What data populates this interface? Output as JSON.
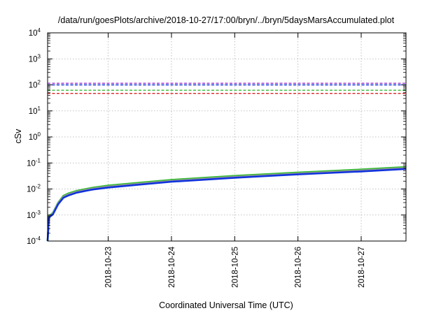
{
  "chart_data": {
    "type": "line",
    "title": "/data/run/goesPlots/archive/2018-10-27/17:00/bryn/../bryn/5daysMarsAccumulated.plot",
    "xlabel": "Coordinated Universal Time (UTC)",
    "ylabel": "cSv",
    "yscale": "log",
    "ylim": [
      0.0001,
      10000
    ],
    "xlim": [
      "2018-10-22T01:00",
      "2018-10-27T17:00"
    ],
    "x_ticks": [
      "2018-10-23",
      "2018-10-24",
      "2018-10-25",
      "2018-10-26",
      "2018-10-27"
    ],
    "y_ticks": [
      {
        "base": "10",
        "exp": "-4",
        "value": 0.0001
      },
      {
        "base": "10",
        "exp": "-3",
        "value": 0.001
      },
      {
        "base": "10",
        "exp": "-2",
        "value": 0.01
      },
      {
        "base": "10",
        "exp": "-1",
        "value": 0.1
      },
      {
        "base": "10",
        "exp": "0",
        "value": 1
      },
      {
        "base": "10",
        "exp": "1",
        "value": 10
      },
      {
        "base": "10",
        "exp": "2",
        "value": 100
      },
      {
        "base": "10",
        "exp": "3",
        "value": 1000
      },
      {
        "base": "10",
        "exp": "4",
        "value": 10000
      }
    ],
    "grid": true,
    "legend": "none",
    "series": [
      {
        "color": "#33bb33",
        "style": "solid",
        "points": [
          [
            "2018-10-22T01:00",
            0.0001
          ],
          [
            "2018-10-22T01:30",
            0.0009
          ],
          [
            "2018-10-22T03:00",
            0.0012
          ],
          [
            "2018-10-22T05:00",
            0.003
          ],
          [
            "2018-10-22T07:00",
            0.0055
          ],
          [
            "2018-10-22T09:00",
            0.0068
          ],
          [
            "2018-10-22T12:00",
            0.0085
          ],
          [
            "2018-10-22T18:00",
            0.0112
          ],
          [
            "2018-10-23T00:00",
            0.0135
          ],
          [
            "2018-10-23T12:00",
            0.0175
          ],
          [
            "2018-10-24T00:00",
            0.0225
          ],
          [
            "2018-10-24T12:00",
            0.0268
          ],
          [
            "2018-10-25T00:00",
            0.032
          ],
          [
            "2018-10-25T12:00",
            0.037
          ],
          [
            "2018-10-26T00:00",
            0.043
          ],
          [
            "2018-10-26T12:00",
            0.049
          ],
          [
            "2018-10-27T00:00",
            0.056
          ],
          [
            "2018-10-27T17:00",
            0.07
          ]
        ]
      },
      {
        "color": "#999999",
        "style": "solid",
        "points": [
          [
            "2018-10-22T01:00",
            0.0001
          ],
          [
            "2018-10-22T01:30",
            0.00085
          ],
          [
            "2018-10-22T03:00",
            0.00112
          ],
          [
            "2018-10-22T05:00",
            0.0028
          ],
          [
            "2018-10-22T07:00",
            0.005
          ],
          [
            "2018-10-22T09:00",
            0.0062
          ],
          [
            "2018-10-22T12:00",
            0.0078
          ],
          [
            "2018-10-22T18:00",
            0.0103
          ],
          [
            "2018-10-23T00:00",
            0.0124
          ],
          [
            "2018-10-23T12:00",
            0.016
          ],
          [
            "2018-10-24T00:00",
            0.0205
          ],
          [
            "2018-10-24T12:00",
            0.0245
          ],
          [
            "2018-10-25T00:00",
            0.0292
          ],
          [
            "2018-10-25T12:00",
            0.0338
          ],
          [
            "2018-10-26T00:00",
            0.0392
          ],
          [
            "2018-10-26T12:00",
            0.0447
          ],
          [
            "2018-10-27T00:00",
            0.051
          ],
          [
            "2018-10-27T17:00",
            0.064
          ]
        ]
      },
      {
        "color": "#1133dd",
        "style": "solid",
        "points": [
          [
            "2018-10-22T01:00",
            0.0001
          ],
          [
            "2018-10-22T01:30",
            0.0008
          ],
          [
            "2018-10-22T03:00",
            0.00105
          ],
          [
            "2018-10-22T05:00",
            0.0026
          ],
          [
            "2018-10-22T07:00",
            0.0046
          ],
          [
            "2018-10-22T09:00",
            0.0057
          ],
          [
            "2018-10-22T12:00",
            0.0072
          ],
          [
            "2018-10-22T18:00",
            0.0095
          ],
          [
            "2018-10-23T00:00",
            0.0114
          ],
          [
            "2018-10-23T12:00",
            0.0148
          ],
          [
            "2018-10-24T00:00",
            0.019
          ],
          [
            "2018-10-24T12:00",
            0.0226
          ],
          [
            "2018-10-25T00:00",
            0.027
          ],
          [
            "2018-10-25T12:00",
            0.0313
          ],
          [
            "2018-10-26T00:00",
            0.0363
          ],
          [
            "2018-10-26T12:00",
            0.0414
          ],
          [
            "2018-10-27T00:00",
            0.0472
          ],
          [
            "2018-10-27T17:00",
            0.059
          ]
        ]
      },
      {
        "color": "#9933cc",
        "style": "dashed",
        "points": [
          [
            "2018-10-22T01:00",
            115
          ],
          [
            "2018-10-27T17:00",
            115
          ]
        ]
      },
      {
        "color": "#1133dd",
        "style": "dashed",
        "points": [
          [
            "2018-10-22T01:00",
            100
          ],
          [
            "2018-10-27T17:00",
            100
          ]
        ]
      },
      {
        "color": "#33bb33",
        "style": "dashed",
        "points": [
          [
            "2018-10-22T01:00",
            62
          ],
          [
            "2018-10-27T17:00",
            62
          ]
        ]
      },
      {
        "color": "#dd2222",
        "style": "dashed",
        "points": [
          [
            "2018-10-22T01:00",
            47
          ],
          [
            "2018-10-27T17:00",
            47
          ]
        ]
      }
    ]
  }
}
